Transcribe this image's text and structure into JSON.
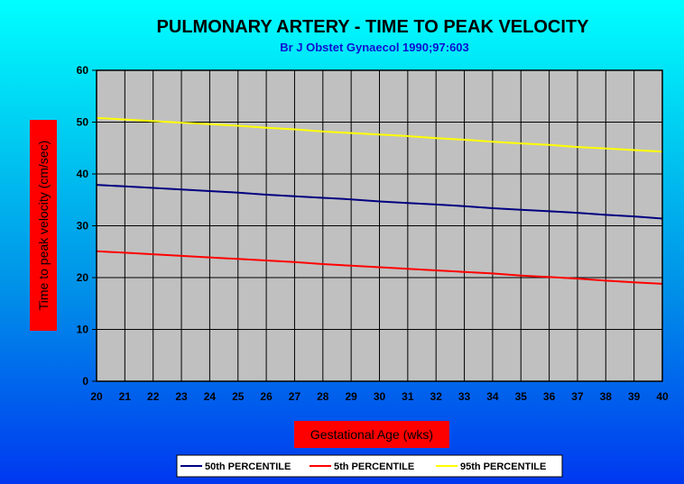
{
  "chart_data": {
    "type": "line",
    "title": "PULMONARY ARTERY - TIME TO PEAK VELOCITY",
    "subtitle": "Br J Obstet Gynaecol 1990;97:603",
    "xlabel": "Gestational Age (wks)",
    "ylabel": "Time to peak velocity (cm/sec)",
    "x": [
      20,
      21,
      22,
      23,
      24,
      25,
      26,
      27,
      28,
      29,
      30,
      31,
      32,
      33,
      34,
      35,
      36,
      37,
      38,
      39,
      40
    ],
    "x_tick_labels": [
      "20",
      "21",
      "22",
      "23",
      "24",
      "25",
      "26",
      "27",
      "28",
      "29",
      "30",
      "31",
      "32",
      "33",
      "34",
      "35",
      "36",
      "37",
      "38",
      "39",
      "40"
    ],
    "y_tick_labels": [
      "0",
      "10",
      "20",
      "30",
      "40",
      "50",
      "60"
    ],
    "xlim": [
      20,
      40
    ],
    "ylim": [
      0,
      60
    ],
    "grid": true,
    "legend_position": "bottom",
    "plot_background": "#c0c0c0",
    "axis_label_background": "#ff0000",
    "series": [
      {
        "name": "50th PERCENTILE",
        "color": "#000080",
        "values": [
          37.9,
          37.6,
          37.3,
          37.0,
          36.7,
          36.4,
          36.0,
          35.7,
          35.4,
          35.1,
          34.7,
          34.4,
          34.1,
          33.8,
          33.4,
          33.1,
          32.8,
          32.5,
          32.1,
          31.8,
          31.4
        ]
      },
      {
        "name": "5th PERCENTILE",
        "color": "#ff0000",
        "values": [
          25.1,
          24.8,
          24.5,
          24.2,
          23.9,
          23.6,
          23.3,
          23.0,
          22.6,
          22.3,
          22.0,
          21.7,
          21.4,
          21.1,
          20.8,
          20.4,
          20.1,
          19.8,
          19.4,
          19.1,
          18.8
        ]
      },
      {
        "name": "95th PERCENTILE",
        "color": "#ffff00",
        "values": [
          50.8,
          50.5,
          50.2,
          49.9,
          49.6,
          49.3,
          48.9,
          48.6,
          48.2,
          47.9,
          47.6,
          47.3,
          46.9,
          46.6,
          46.2,
          45.9,
          45.6,
          45.2,
          44.9,
          44.6,
          44.3
        ]
      }
    ]
  }
}
